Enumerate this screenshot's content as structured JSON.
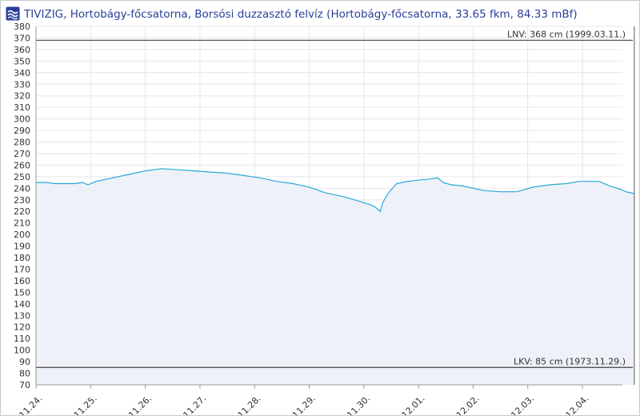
{
  "header": {
    "title": "TIVIZIG, Hortobágy-főcsatorna, Borsósi duzzasztó felvíz (Hortobágy-főcsatorna, 33.65 fkm, 84.33 mBf)",
    "logo_icon": "tivizig-logo-icon"
  },
  "chart_data": {
    "type": "area",
    "title": "TIVIZIG, Hortobágy-főcsatorna, Borsósi duzzasztó felvíz (Hortobágy-főcsatorna, 33.65 fkm, 84.33 mBf)",
    "xlabel": "",
    "ylabel": "",
    "ylim": [
      70,
      380
    ],
    "y_ticks": [
      70,
      80,
      90,
      100,
      110,
      120,
      130,
      140,
      150,
      160,
      170,
      180,
      190,
      200,
      210,
      220,
      230,
      240,
      250,
      260,
      270,
      280,
      290,
      300,
      310,
      320,
      330,
      340,
      350,
      360,
      370,
      380
    ],
    "x_tick_labels": [
      "11.24.",
      "11.25.",
      "11.26.",
      "11.27.",
      "11.28.",
      "11.29.",
      "11.30.",
      "12.01.",
      "12.02.",
      "12.03.",
      "12.04."
    ],
    "xlim_days": [
      0,
      10.95
    ],
    "grid": true,
    "line_color": "#29a8d8",
    "fill_color": "#eef1f8",
    "reference_lines": [
      {
        "label": "LNV: 368 cm (1999.03.11.)",
        "value": 368
      },
      {
        "label": "LKV: 85 cm (1973.11.29.)",
        "value": 85
      }
    ],
    "marker_line_day": 10.95,
    "series": [
      {
        "x": [
          0.0,
          0.2,
          0.35,
          0.5,
          0.7,
          0.85,
          0.95,
          1.1,
          1.3,
          1.5,
          1.7,
          2.0,
          2.3,
          2.6,
          2.9,
          3.2,
          3.5,
          3.8,
          4.1,
          4.4,
          4.7,
          5.0,
          5.3,
          5.6,
          5.9,
          6.1,
          6.2,
          6.25,
          6.3,
          6.35,
          6.45,
          6.6,
          6.8,
          7.0,
          7.2,
          7.35,
          7.45,
          7.6,
          7.8,
          8.0,
          8.2,
          8.5,
          8.8,
          9.1,
          9.4,
          9.7,
          9.95,
          10.1,
          10.3,
          10.5,
          10.7,
          10.8,
          10.9,
          10.95
        ],
        "y": [
          245,
          245,
          244,
          244,
          244,
          245,
          243,
          246,
          248,
          250,
          252,
          255,
          257,
          256,
          255,
          254,
          253,
          251,
          249,
          246,
          244,
          241,
          236,
          233,
          229,
          226,
          224,
          222,
          220,
          228,
          236,
          244,
          246,
          247,
          248,
          249,
          245,
          243,
          242,
          240,
          238,
          237,
          237,
          241,
          243,
          244,
          246,
          246,
          246,
          242,
          239,
          237,
          236,
          235
        ]
      }
    ]
  }
}
